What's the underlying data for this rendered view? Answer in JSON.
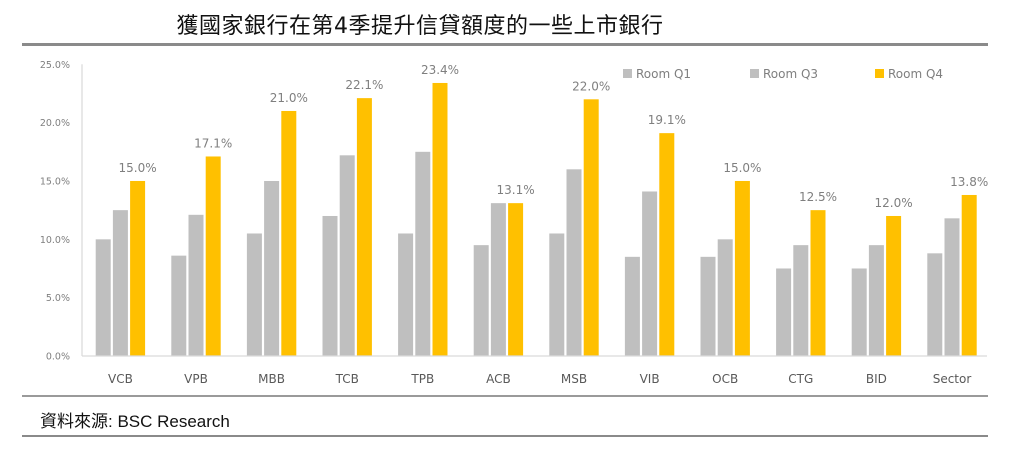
{
  "title": "獲國家銀行在第4季提升信貸額度的一些上市銀行",
  "source": "資料來源: BSC Research",
  "colors": {
    "q1": "#BFBFBF",
    "q3": "#BFBFBF",
    "q4": "#FFC000",
    "axis": "#D9D9D9",
    "label": "#7F7F7F"
  },
  "chart_data": {
    "type": "bar",
    "title": "獲國家銀行在第4季提升信貸額度的一些上市銀行",
    "xlabel": "",
    "ylabel": "",
    "ylim": [
      0,
      25
    ],
    "yticks": [
      "0.0%",
      "5.0%",
      "10.0%",
      "15.0%",
      "20.0%",
      "25.0%"
    ],
    "grid": false,
    "legend_position": "top-right",
    "categories": [
      "VCB",
      "VPB",
      "MBB",
      "TCB",
      "TPB",
      "ACB",
      "MSB",
      "VIB",
      "OCB",
      "CTG",
      "BID",
      "Sector"
    ],
    "series": [
      {
        "name": "Room Q1",
        "values": [
          10.0,
          8.6,
          10.5,
          12.0,
          10.5,
          9.5,
          10.5,
          8.5,
          8.5,
          7.5,
          7.5,
          8.8
        ]
      },
      {
        "name": "Room Q3",
        "values": [
          12.5,
          12.1,
          15.0,
          17.2,
          17.5,
          13.1,
          16.0,
          14.1,
          10.0,
          9.5,
          9.5,
          11.8
        ]
      },
      {
        "name": "Room Q4",
        "values": [
          15.0,
          17.1,
          21.0,
          22.1,
          23.4,
          13.1,
          22.0,
          19.1,
          15.0,
          12.5,
          12.0,
          13.8
        ]
      }
    ],
    "data_labels": {
      "series": "Room Q4",
      "labels": [
        "15.0%",
        "17.1%",
        "21.0%",
        "22.1%",
        "23.4%",
        "13.1%",
        "22.0%",
        "19.1%",
        "15.0%",
        "12.5%",
        "12.0%",
        "13.8%"
      ]
    }
  }
}
